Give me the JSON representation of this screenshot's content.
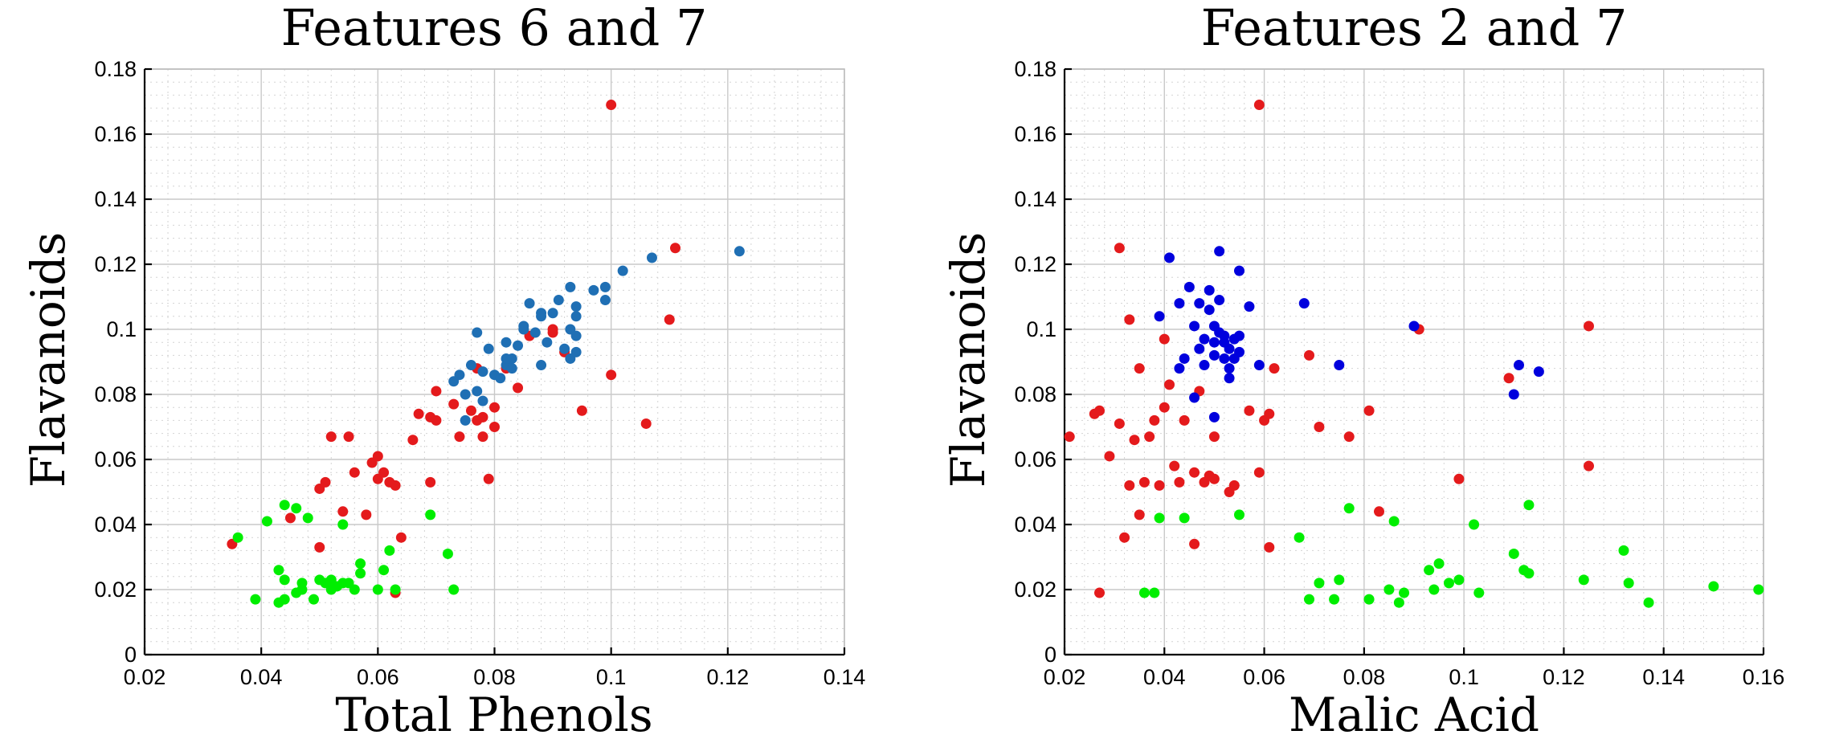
{
  "chart_data": [
    {
      "type": "scatter",
      "title": "Features 6 and 7",
      "xlabel": "Total Phenols",
      "ylabel": "Flavanoids",
      "xlim": [
        0.02,
        0.14
      ],
      "ylim": [
        0,
        0.18
      ],
      "xticks": [
        0.02,
        0.04,
        0.06,
        0.08,
        0.1,
        0.12,
        0.14
      ],
      "xtick_labels": [
        "0.02",
        "0.04",
        "0.06",
        "0.08",
        "0.1",
        "0.12",
        "0.14"
      ],
      "yticks": [
        0,
        0.02,
        0.04,
        0.06,
        0.08,
        0.1,
        0.12,
        0.14,
        0.16,
        0.18
      ],
      "ytick_labels": [
        "0",
        "0.02",
        "0.04",
        "0.06",
        "0.08",
        "0.1",
        "0.12",
        "0.14",
        "0.16",
        "0.18"
      ],
      "grid": true,
      "minor_grid": true,
      "series": [
        {
          "color": "#e41a1c",
          "points": [
            [
              0.035,
              0.034
            ],
            [
              0.045,
              0.042
            ],
            [
              0.05,
              0.033
            ],
            [
              0.05,
              0.051
            ],
            [
              0.051,
              0.053
            ],
            [
              0.052,
              0.067
            ],
            [
              0.054,
              0.044
            ],
            [
              0.055,
              0.067
            ],
            [
              0.056,
              0.056
            ],
            [
              0.058,
              0.043
            ],
            [
              0.059,
              0.059
            ],
            [
              0.06,
              0.061
            ],
            [
              0.06,
              0.054
            ],
            [
              0.061,
              0.056
            ],
            [
              0.062,
              0.053
            ],
            [
              0.063,
              0.052
            ],
            [
              0.063,
              0.019
            ],
            [
              0.064,
              0.036
            ],
            [
              0.066,
              0.066
            ],
            [
              0.067,
              0.074
            ],
            [
              0.069,
              0.053
            ],
            [
              0.069,
              0.073
            ],
            [
              0.07,
              0.072
            ],
            [
              0.07,
              0.081
            ],
            [
              0.074,
              0.067
            ],
            [
              0.076,
              0.075
            ],
            [
              0.077,
              0.072
            ],
            [
              0.078,
              0.067
            ],
            [
              0.078,
              0.073
            ],
            [
              0.079,
              0.054
            ],
            [
              0.08,
              0.076
            ],
            [
              0.08,
              0.07
            ],
            [
              0.082,
              0.088
            ],
            [
              0.084,
              0.082
            ],
            [
              0.086,
              0.098
            ],
            [
              0.09,
              0.1
            ],
            [
              0.09,
              0.099
            ],
            [
              0.092,
              0.093
            ],
            [
              0.095,
              0.075
            ],
            [
              0.1,
              0.086
            ],
            [
              0.1,
              0.169
            ],
            [
              0.106,
              0.071
            ],
            [
              0.11,
              0.103
            ],
            [
              0.111,
              0.125
            ],
            [
              0.077,
              0.088
            ],
            [
              0.073,
              0.077
            ]
          ]
        },
        {
          "color": "#00ee00",
          "points": [
            [
              0.036,
              0.036
            ],
            [
              0.039,
              0.017
            ],
            [
              0.041,
              0.041
            ],
            [
              0.043,
              0.026
            ],
            [
              0.043,
              0.016
            ],
            [
              0.044,
              0.017
            ],
            [
              0.044,
              0.023
            ],
            [
              0.044,
              0.046
            ],
            [
              0.046,
              0.019
            ],
            [
              0.046,
              0.045
            ],
            [
              0.047,
              0.022
            ],
            [
              0.047,
              0.02
            ],
            [
              0.048,
              0.042
            ],
            [
              0.049,
              0.017
            ],
            [
              0.05,
              0.023
            ],
            [
              0.051,
              0.022
            ],
            [
              0.052,
              0.02
            ],
            [
              0.052,
              0.023
            ],
            [
              0.053,
              0.021
            ],
            [
              0.054,
              0.022
            ],
            [
              0.055,
              0.022
            ],
            [
              0.054,
              0.04
            ],
            [
              0.056,
              0.02
            ],
            [
              0.057,
              0.025
            ],
            [
              0.057,
              0.028
            ],
            [
              0.06,
              0.02
            ],
            [
              0.061,
              0.026
            ],
            [
              0.062,
              0.032
            ],
            [
              0.063,
              0.02
            ],
            [
              0.069,
              0.043
            ],
            [
              0.072,
              0.031
            ],
            [
              0.073,
              0.02
            ]
          ]
        },
        {
          "color": "#1f6fb4",
          "points": [
            [
              0.073,
              0.084
            ],
            [
              0.074,
              0.086
            ],
            [
              0.075,
              0.072
            ],
            [
              0.075,
              0.08
            ],
            [
              0.076,
              0.089
            ],
            [
              0.077,
              0.099
            ],
            [
              0.077,
              0.081
            ],
            [
              0.078,
              0.078
            ],
            [
              0.078,
              0.087
            ],
            [
              0.079,
              0.094
            ],
            [
              0.08,
              0.086
            ],
            [
              0.081,
              0.085
            ],
            [
              0.082,
              0.089
            ],
            [
              0.082,
              0.096
            ],
            [
              0.083,
              0.091
            ],
            [
              0.083,
              0.088
            ],
            [
              0.084,
              0.095
            ],
            [
              0.085,
              0.1
            ],
            [
              0.085,
              0.101
            ],
            [
              0.086,
              0.108
            ],
            [
              0.087,
              0.099
            ],
            [
              0.088,
              0.089
            ],
            [
              0.088,
              0.104
            ],
            [
              0.089,
              0.096
            ],
            [
              0.09,
              0.105
            ],
            [
              0.091,
              0.109
            ],
            [
              0.092,
              0.094
            ],
            [
              0.093,
              0.091
            ],
            [
              0.093,
              0.113
            ],
            [
              0.093,
              0.1
            ],
            [
              0.094,
              0.093
            ],
            [
              0.094,
              0.104
            ],
            [
              0.094,
              0.107
            ],
            [
              0.094,
              0.098
            ],
            [
              0.097,
              0.112
            ],
            [
              0.099,
              0.109
            ],
            [
              0.099,
              0.113
            ],
            [
              0.102,
              0.118
            ],
            [
              0.107,
              0.122
            ],
            [
              0.122,
              0.124
            ],
            [
              0.088,
              0.105
            ],
            [
              0.082,
              0.091
            ]
          ]
        }
      ]
    },
    {
      "type": "scatter",
      "title": "Features 2 and 7",
      "xlabel": "Malic Acid",
      "ylabel": "Flavanoids",
      "xlim": [
        0.02,
        0.16
      ],
      "ylim": [
        0,
        0.18
      ],
      "xticks": [
        0.02,
        0.04,
        0.06,
        0.08,
        0.1,
        0.12,
        0.14,
        0.16
      ],
      "xtick_labels": [
        "0.02",
        "0.04",
        "0.06",
        "0.08",
        "0.1",
        "0.12",
        "0.14",
        "0.16"
      ],
      "yticks": [
        0,
        0.02,
        0.04,
        0.06,
        0.08,
        0.1,
        0.12,
        0.14,
        0.16,
        0.18
      ],
      "ytick_labels": [
        "0",
        "0.02",
        "0.04",
        "0.06",
        "0.08",
        "0.1",
        "0.12",
        "0.14",
        "0.16",
        "0.18"
      ],
      "grid": true,
      "minor_grid": true,
      "series": [
        {
          "color": "#e41a1c",
          "points": [
            [
              0.021,
              0.067
            ],
            [
              0.026,
              0.074
            ],
            [
              0.027,
              0.075
            ],
            [
              0.027,
              0.019
            ],
            [
              0.029,
              0.061
            ],
            [
              0.031,
              0.125
            ],
            [
              0.031,
              0.071
            ],
            [
              0.032,
              0.036
            ],
            [
              0.033,
              0.052
            ],
            [
              0.033,
              0.103
            ],
            [
              0.034,
              0.066
            ],
            [
              0.035,
              0.043
            ],
            [
              0.035,
              0.088
            ],
            [
              0.036,
              0.053
            ],
            [
              0.037,
              0.067
            ],
            [
              0.038,
              0.072
            ],
            [
              0.039,
              0.052
            ],
            [
              0.04,
              0.097
            ],
            [
              0.04,
              0.076
            ],
            [
              0.041,
              0.083
            ],
            [
              0.042,
              0.058
            ],
            [
              0.043,
              0.053
            ],
            [
              0.044,
              0.072
            ],
            [
              0.046,
              0.034
            ],
            [
              0.046,
              0.056
            ],
            [
              0.047,
              0.081
            ],
            [
              0.048,
              0.053
            ],
            [
              0.049,
              0.055
            ],
            [
              0.05,
              0.067
            ],
            [
              0.05,
              0.054
            ],
            [
              0.053,
              0.05
            ],
            [
              0.054,
              0.052
            ],
            [
              0.057,
              0.075
            ],
            [
              0.059,
              0.056
            ],
            [
              0.059,
              0.169
            ],
            [
              0.06,
              0.072
            ],
            [
              0.061,
              0.033
            ],
            [
              0.062,
              0.088
            ],
            [
              0.069,
              0.092
            ],
            [
              0.071,
              0.07
            ],
            [
              0.077,
              0.067
            ],
            [
              0.081,
              0.075
            ],
            [
              0.083,
              0.044
            ],
            [
              0.091,
              0.1
            ],
            [
              0.099,
              0.054
            ],
            [
              0.109,
              0.085
            ],
            [
              0.125,
              0.101
            ],
            [
              0.125,
              0.058
            ],
            [
              0.061,
              0.074
            ]
          ]
        },
        {
          "color": "#00ee00",
          "points": [
            [
              0.036,
              0.019
            ],
            [
              0.038,
              0.019
            ],
            [
              0.039,
              0.042
            ],
            [
              0.044,
              0.042
            ],
            [
              0.055,
              0.043
            ],
            [
              0.067,
              0.036
            ],
            [
              0.069,
              0.017
            ],
            [
              0.071,
              0.022
            ],
            [
              0.074,
              0.017
            ],
            [
              0.075,
              0.023
            ],
            [
              0.077,
              0.045
            ],
            [
              0.081,
              0.017
            ],
            [
              0.085,
              0.02
            ],
            [
              0.086,
              0.041
            ],
            [
              0.087,
              0.016
            ],
            [
              0.088,
              0.019
            ],
            [
              0.093,
              0.026
            ],
            [
              0.094,
              0.02
            ],
            [
              0.095,
              0.028
            ],
            [
              0.097,
              0.022
            ],
            [
              0.099,
              0.023
            ],
            [
              0.102,
              0.04
            ],
            [
              0.103,
              0.019
            ],
            [
              0.11,
              0.031
            ],
            [
              0.112,
              0.026
            ],
            [
              0.113,
              0.046
            ],
            [
              0.113,
              0.025
            ],
            [
              0.124,
              0.023
            ],
            [
              0.132,
              0.032
            ],
            [
              0.133,
              0.022
            ],
            [
              0.137,
              0.016
            ],
            [
              0.15,
              0.021
            ],
            [
              0.159,
              0.02
            ]
          ]
        },
        {
          "color": "#0000dd",
          "points": [
            [
              0.039,
              0.104
            ],
            [
              0.041,
              0.122
            ],
            [
              0.043,
              0.108
            ],
            [
              0.043,
              0.088
            ],
            [
              0.044,
              0.091
            ],
            [
              0.045,
              0.113
            ],
            [
              0.046,
              0.101
            ],
            [
              0.046,
              0.079
            ],
            [
              0.047,
              0.094
            ],
            [
              0.047,
              0.108
            ],
            [
              0.048,
              0.089
            ],
            [
              0.048,
              0.097
            ],
            [
              0.049,
              0.106
            ],
            [
              0.049,
              0.112
            ],
            [
              0.05,
              0.096
            ],
            [
              0.05,
              0.092
            ],
            [
              0.05,
              0.101
            ],
            [
              0.05,
              0.073
            ],
            [
              0.051,
              0.124
            ],
            [
              0.051,
              0.099
            ],
            [
              0.052,
              0.098
            ],
            [
              0.052,
              0.091
            ],
            [
              0.052,
              0.096
            ],
            [
              0.053,
              0.088
            ],
            [
              0.053,
              0.085
            ],
            [
              0.053,
              0.094
            ],
            [
              0.054,
              0.097
            ],
            [
              0.054,
              0.091
            ],
            [
              0.055,
              0.118
            ],
            [
              0.055,
              0.093
            ],
            [
              0.055,
              0.098
            ],
            [
              0.057,
              0.107
            ],
            [
              0.059,
              0.089
            ],
            [
              0.068,
              0.108
            ],
            [
              0.075,
              0.089
            ],
            [
              0.09,
              0.101
            ],
            [
              0.11,
              0.08
            ],
            [
              0.111,
              0.089
            ],
            [
              0.115,
              0.087
            ],
            [
              0.051,
              0.109
            ]
          ]
        }
      ]
    }
  ]
}
